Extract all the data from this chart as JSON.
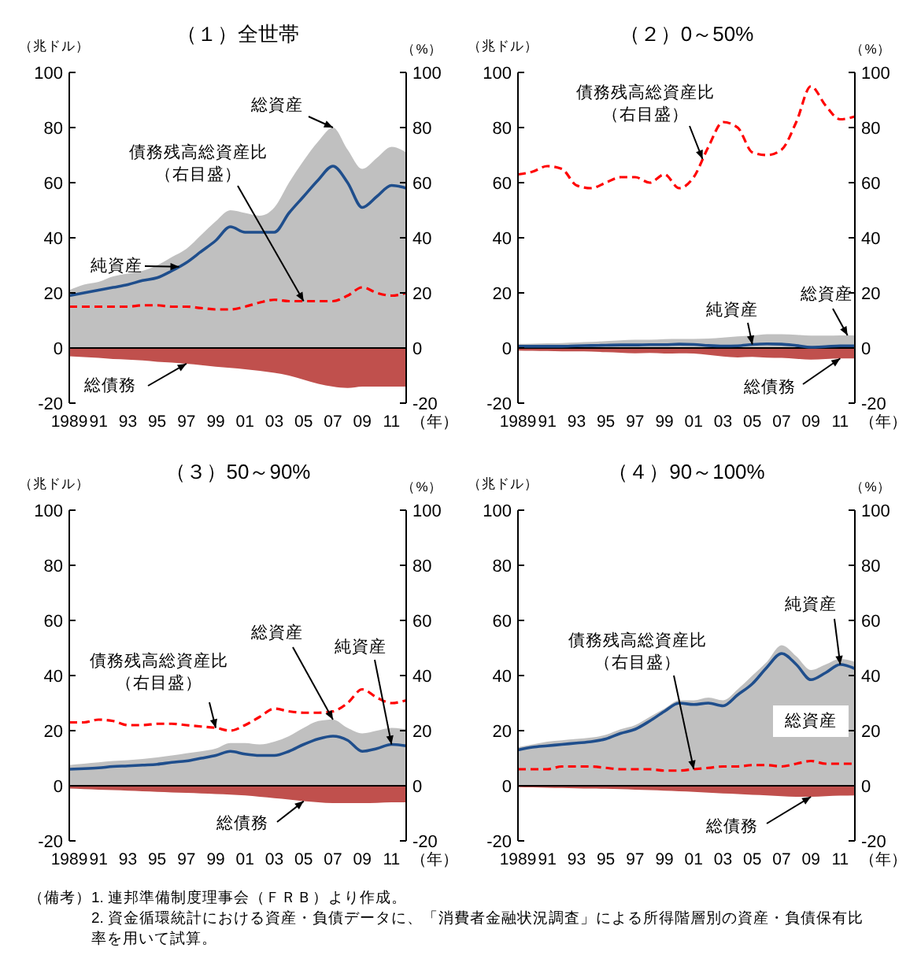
{
  "chart_data": [
    {
      "type": "area",
      "title": "（１）全世帯",
      "ylabel": "（兆ドル）",
      "y2label": "（%）",
      "xlabel": "（年）",
      "x": [
        1989,
        1990,
        1991,
        1992,
        1993,
        1994,
        1995,
        1996,
        1997,
        1998,
        1999,
        2000,
        2001,
        2002,
        2003,
        2004,
        2005,
        2006,
        2007,
        2008,
        2009,
        2010,
        2011,
        2012
      ],
      "xlim": [
        1989,
        2012
      ],
      "xticks": [
        {
          "value": 1989,
          "label": "1989"
        },
        {
          "value": 1991,
          "label": "91"
        },
        {
          "value": 1993,
          "label": "93"
        },
        {
          "value": 1995,
          "label": "95"
        },
        {
          "value": 1997,
          "label": "97"
        },
        {
          "value": 1999,
          "label": "99"
        },
        {
          "value": 2001,
          "label": "01"
        },
        {
          "value": 2003,
          "label": "03"
        },
        {
          "value": 2005,
          "label": "05"
        },
        {
          "value": 2007,
          "label": "07"
        },
        {
          "value": 2009,
          "label": "09"
        },
        {
          "value": 2011,
          "label": "11"
        }
      ],
      "ylim": [
        -20,
        100
      ],
      "yticks": [
        -20,
        0,
        20,
        40,
        60,
        80,
        100
      ],
      "y2lim": [
        -20,
        100
      ],
      "y2ticks": [
        -20,
        0,
        20,
        40,
        60,
        80,
        100
      ],
      "series": [
        {
          "name": "総資産",
          "color": "#c0c0c0",
          "values": [
            21,
            23,
            24,
            26,
            27,
            28,
            30,
            33,
            36,
            41,
            46,
            50,
            49,
            48,
            51,
            60,
            68,
            75,
            80,
            72,
            65,
            69,
            73,
            71
          ]
        },
        {
          "name": "総債務",
          "type": "area",
          "color": "#c0504d",
          "values": [
            -3,
            -3.3,
            -3.6,
            -4,
            -4.2,
            -4.5,
            -5,
            -5.3,
            -5.7,
            -6.2,
            -6.8,
            -7.2,
            -7.7,
            -8.3,
            -9,
            -10,
            -11.5,
            -13,
            -14,
            -14.5,
            -14,
            -14,
            -14,
            -14
          ]
        },
        {
          "name": "純資産",
          "type": "line",
          "color": "#1f4e8c",
          "values": [
            19,
            20,
            21,
            22,
            23,
            24.5,
            25.5,
            28,
            31,
            35,
            39,
            44,
            42,
            42,
            42,
            49,
            55,
            61,
            66,
            60,
            51,
            55,
            59,
            58
          ]
        },
        {
          "name": "債務残高総資産比（右目盛）",
          "type": "line",
          "axis": "y2",
          "line_style": "dashed",
          "color": "#ff0000",
          "values": [
            15,
            15,
            15,
            15,
            15,
            15.5,
            15.5,
            15,
            15,
            14.5,
            14,
            14,
            15,
            16.5,
            17.5,
            17,
            17,
            17,
            17,
            19,
            22,
            20,
            19,
            20
          ]
        }
      ]
    },
    {
      "type": "area",
      "title": "（２）0～50%",
      "ylabel": "（兆ドル）",
      "y2label": "（%）",
      "xlabel": "（年）",
      "x": [
        1989,
        1990,
        1991,
        1992,
        1993,
        1994,
        1995,
        1996,
        1997,
        1998,
        1999,
        2000,
        2001,
        2002,
        2003,
        2004,
        2005,
        2006,
        2007,
        2008,
        2009,
        2010,
        2011,
        2012
      ],
      "xlim": [
        1989,
        2012
      ],
      "xticks": [
        {
          "value": 1989,
          "label": "1989"
        },
        {
          "value": 1991,
          "label": "91"
        },
        {
          "value": 1993,
          "label": "93"
        },
        {
          "value": 1995,
          "label": "95"
        },
        {
          "value": 1997,
          "label": "97"
        },
        {
          "value": 1999,
          "label": "99"
        },
        {
          "value": 2001,
          "label": "01"
        },
        {
          "value": 2003,
          "label": "03"
        },
        {
          "value": 2005,
          "label": "05"
        },
        {
          "value": 2007,
          "label": "07"
        },
        {
          "value": 2009,
          "label": "09"
        },
        {
          "value": 2011,
          "label": "11"
        }
      ],
      "ylim": [
        -20,
        100
      ],
      "yticks": [
        -20,
        0,
        20,
        40,
        60,
        80,
        100
      ],
      "y2lim": [
        -20,
        100
      ],
      "y2ticks": [
        -20,
        0,
        20,
        40,
        60,
        80,
        100
      ],
      "series": [
        {
          "name": "総資産",
          "color": "#c0c0c0",
          "values": [
            1.5,
            1.6,
            1.7,
            1.8,
            2,
            2.2,
            2.5,
            2.8,
            3,
            3,
            3.2,
            3.3,
            3.3,
            3.4,
            3.8,
            4.2,
            4.5,
            5,
            5,
            4.8,
            4.5,
            4.5,
            4.6,
            4.6
          ]
        },
        {
          "name": "総債務",
          "type": "area",
          "color": "#c0504d",
          "values": [
            -0.9,
            -1,
            -1.1,
            -1.2,
            -1.2,
            -1.3,
            -1.5,
            -1.7,
            -1.9,
            -1.8,
            -2,
            -1.9,
            -2,
            -2.5,
            -3.1,
            -3.4,
            -3.2,
            -3.5,
            -3.6,
            -3.9,
            -4.2,
            -4,
            -3.8,
            -3.8
          ]
        },
        {
          "name": "純資産",
          "type": "line",
          "color": "#1f4e8c",
          "values": [
            0.6,
            0.6,
            0.6,
            0.6,
            0.8,
            0.9,
            1,
            1.1,
            1.1,
            1.2,
            1.2,
            1.4,
            1.3,
            0.9,
            0.7,
            0.8,
            1.3,
            1.5,
            1.4,
            0.9,
            0.3,
            0.5,
            0.8,
            0.8
          ]
        },
        {
          "name": "債務残高総資産比（右目盛）",
          "type": "line",
          "axis": "y2",
          "line_style": "dashed",
          "color": "#ff0000",
          "values": [
            63,
            64,
            66,
            65,
            59,
            58,
            60,
            62,
            62,
            60,
            63,
            58,
            62,
            73,
            82,
            80,
            71,
            70,
            72,
            82,
            95,
            88,
            83,
            84
          ]
        }
      ]
    },
    {
      "type": "area",
      "title": "（３）50～90%",
      "ylabel": "（兆ドル）",
      "y2label": "（%）",
      "xlabel": "（年）",
      "x": [
        1989,
        1990,
        1991,
        1992,
        1993,
        1994,
        1995,
        1996,
        1997,
        1998,
        1999,
        2000,
        2001,
        2002,
        2003,
        2004,
        2005,
        2006,
        2007,
        2008,
        2009,
        2010,
        2011,
        2012
      ],
      "xlim": [
        1989,
        2012
      ],
      "xticks": [
        {
          "value": 1989,
          "label": "1989"
        },
        {
          "value": 1991,
          "label": "91"
        },
        {
          "value": 1993,
          "label": "93"
        },
        {
          "value": 1995,
          "label": "95"
        },
        {
          "value": 1997,
          "label": "97"
        },
        {
          "value": 1999,
          "label": "99"
        },
        {
          "value": 2001,
          "label": "01"
        },
        {
          "value": 2003,
          "label": "03"
        },
        {
          "value": 2005,
          "label": "05"
        },
        {
          "value": 2007,
          "label": "07"
        },
        {
          "value": 2009,
          "label": "09"
        },
        {
          "value": 2011,
          "label": "11"
        }
      ],
      "ylim": [
        -20,
        100
      ],
      "yticks": [
        -20,
        0,
        20,
        40,
        60,
        80,
        100
      ],
      "y2lim": [
        -20,
        100
      ],
      "y2ticks": [
        -20,
        0,
        20,
        40,
        60,
        80,
        100
      ],
      "series": [
        {
          "name": "総資産",
          "color": "#c0c0c0",
          "values": [
            7.5,
            8,
            8.5,
            9,
            9.3,
            9.7,
            10.3,
            11,
            11.8,
            12.5,
            13.5,
            15.5,
            15.5,
            15,
            16,
            18,
            21,
            23.5,
            24,
            21,
            19,
            20,
            21,
            20.5
          ]
        },
        {
          "name": "総債務",
          "type": "area",
          "color": "#c0504d",
          "values": [
            -1,
            -1.2,
            -1.4,
            -1.6,
            -1.8,
            -2,
            -2.2,
            -2.4,
            -2.6,
            -2.8,
            -3,
            -3.2,
            -3.5,
            -4,
            -4.5,
            -5,
            -5.6,
            -6,
            -6.3,
            -6.3,
            -6.3,
            -6.2,
            -6,
            -6
          ]
        },
        {
          "name": "純資産",
          "type": "line",
          "color": "#1f4e8c",
          "values": [
            6,
            6.2,
            6.5,
            7,
            7.2,
            7.5,
            7.8,
            8.5,
            9,
            10,
            11,
            12.5,
            11.5,
            11,
            11,
            12.5,
            15,
            17,
            18,
            16.5,
            12.5,
            13.5,
            15,
            14.5
          ]
        },
        {
          "name": "債務残高総資産比（右目盛）",
          "type": "line",
          "axis": "y2",
          "line_style": "dashed",
          "color": "#ff0000",
          "values": [
            23,
            23,
            24,
            23.5,
            22,
            22,
            22.5,
            22.5,
            22,
            21.5,
            21,
            20,
            22,
            25,
            28,
            27,
            26.5,
            26.5,
            27,
            30,
            35,
            32,
            30,
            31
          ]
        }
      ]
    },
    {
      "type": "area",
      "title": "（４）90～100%",
      "ylabel": "（兆ドル）",
      "y2label": "（%）",
      "xlabel": "（年）",
      "x": [
        1989,
        1990,
        1991,
        1992,
        1993,
        1994,
        1995,
        1996,
        1997,
        1998,
        1999,
        2000,
        2001,
        2002,
        2003,
        2004,
        2005,
        2006,
        2007,
        2008,
        2009,
        2010,
        2011,
        2012
      ],
      "xlim": [
        1989,
        2012
      ],
      "xticks": [
        {
          "value": 1989,
          "label": "1989"
        },
        {
          "value": 1991,
          "label": "91"
        },
        {
          "value": 1993,
          "label": "93"
        },
        {
          "value": 1995,
          "label": "95"
        },
        {
          "value": 1997,
          "label": "97"
        },
        {
          "value": 1999,
          "label": "99"
        },
        {
          "value": 2001,
          "label": "01"
        },
        {
          "value": 2003,
          "label": "03"
        },
        {
          "value": 2005,
          "label": "05"
        },
        {
          "value": 2007,
          "label": "07"
        },
        {
          "value": 2009,
          "label": "09"
        },
        {
          "value": 2011,
          "label": "11"
        }
      ],
      "ylim": [
        -20,
        100
      ],
      "yticks": [
        -20,
        0,
        20,
        40,
        60,
        80,
        100
      ],
      "y2lim": [
        -20,
        100
      ],
      "y2ticks": [
        -20,
        0,
        20,
        40,
        60,
        80,
        100
      ],
      "series": [
        {
          "name": "総資産",
          "color": "#c0c0c0",
          "values": [
            14,
            15,
            16,
            16.5,
            17,
            17.5,
            18.5,
            20.5,
            22,
            25,
            28,
            31,
            31,
            32,
            31,
            35,
            40,
            45,
            51,
            47,
            42,
            44,
            46,
            45
          ]
        },
        {
          "name": "総債務",
          "type": "area",
          "color": "#c0504d",
          "values": [
            -0.5,
            -0.6,
            -0.7,
            -0.8,
            -0.9,
            -1,
            -1.1,
            -1.2,
            -1.4,
            -1.6,
            -1.8,
            -2,
            -2.2,
            -2.5,
            -2.8,
            -3,
            -3.3,
            -3.5,
            -3.8,
            -4,
            -4,
            -3.8,
            -3.6,
            -3.5
          ]
        },
        {
          "name": "純資産",
          "type": "line",
          "color": "#1f4e8c",
          "values": [
            13,
            14,
            14.5,
            15,
            15.5,
            16,
            17,
            19,
            20.5,
            23.5,
            27,
            30,
            29.5,
            30,
            29,
            33,
            37,
            43,
            48,
            44,
            38.5,
            41,
            44,
            42.5
          ]
        },
        {
          "name": "債務残高総資産比（右目盛）",
          "type": "line",
          "axis": "y2",
          "line_style": "dashed",
          "color": "#ff0000",
          "values": [
            6,
            6,
            6,
            7,
            7,
            7,
            6.5,
            6,
            6,
            6,
            5.5,
            5.5,
            6,
            6.5,
            7,
            7,
            7.5,
            7.5,
            7,
            8,
            9,
            8,
            8,
            8
          ]
        }
      ],
      "annotations": [
        "（備考）",
        "1. 連邦準備制度理事会（ＦＲＢ）より作成。",
        "2. 資金循環統計における資産・負債データに、「消費者金融状況調査」による所得階層別の資産・負債保有比率を用いて試算。"
      ]
    }
  ]
}
